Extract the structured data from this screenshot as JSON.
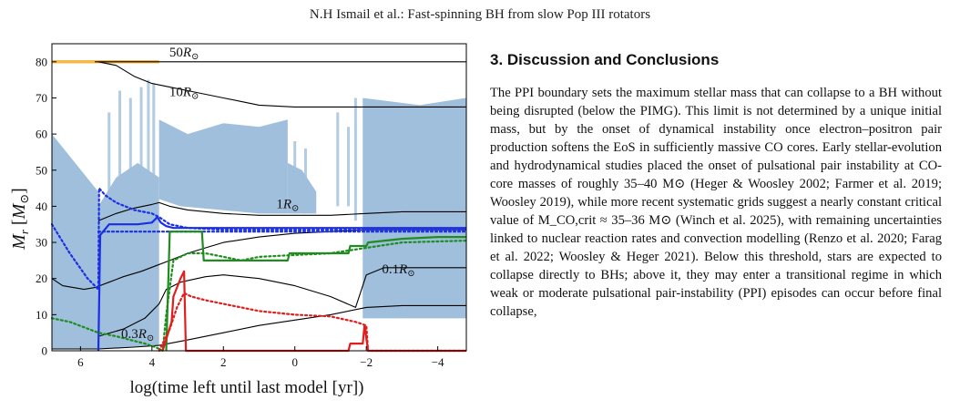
{
  "header": {
    "running_head": "N.H Ismail et al.: Fast-spinning BH from slow Pop III rotators"
  },
  "figure": {
    "chart_data": {
      "type": "line",
      "ylabel": "M_r [M_⊙]",
      "xlabel": "log(time left until last model [yr])",
      "xlim": [
        6.8,
        -4.8
      ],
      "ylim": [
        0,
        85
      ],
      "x_ticks": [
        "6",
        "4",
        "2",
        "0",
        "−2",
        "−4"
      ],
      "x_tick_values": [
        6,
        4,
        2,
        0,
        -2,
        -4
      ],
      "y_ticks": [
        "0",
        "10",
        "20",
        "30",
        "40",
        "50",
        "60",
        "70",
        "80"
      ],
      "y_tick_values": [
        0,
        10,
        20,
        30,
        40,
        50,
        60,
        70,
        80
      ],
      "grid": false,
      "annotations": [
        {
          "text": "50R",
          "x": 3.1,
          "y": 81.5
        },
        {
          "text": "10R",
          "x": 3.1,
          "y": 70.5
        },
        {
          "text": "1R",
          "x": 0.2,
          "y": 39.5
        },
        {
          "text": "0.1R",
          "x": -2.9,
          "y": 21.5
        },
        {
          "text": "0.3R",
          "x": 4.4,
          "y": 3.5
        }
      ],
      "colors": {
        "convection": "#9fbfdc",
        "blue": "#1a2ee6",
        "green": "#1e8c1e",
        "red": "#e01e1e",
        "orange": "#f7b84a",
        "black": "#000000"
      },
      "series": [
        {
          "color": "orange",
          "style": "solid",
          "x": [
            6.8,
            3.8
          ],
          "y": [
            80,
            80
          ]
        },
        {
          "color": "black",
          "style": "solid",
          "x": [
            5.6,
            3.8,
            -4.8
          ],
          "y": [
            80,
            80,
            80
          ]
        },
        {
          "color": "black",
          "style": "solid",
          "x": [
            5.5,
            5.0,
            4.5,
            4.0,
            3.5,
            3.0,
            2.5,
            2.0,
            1.5,
            1.0,
            0.0,
            -1.0,
            -2.0,
            -3.0,
            -4.8
          ],
          "y": [
            80,
            79,
            76,
            74,
            73,
            72,
            71,
            70,
            69,
            68,
            67.5,
            67.5,
            67.5,
            67.5,
            67.5
          ]
        },
        {
          "color": "black",
          "style": "solid",
          "x": [
            5.5,
            5.0,
            4.5,
            4.0,
            3.8,
            3.5,
            3.0,
            2.0,
            1.0,
            0.0,
            -1.0,
            -2.0,
            -3.0,
            -4.8
          ],
          "y": [
            36,
            38,
            39.5,
            40.5,
            41,
            40,
            39,
            38,
            37.5,
            37.5,
            37.5,
            38,
            38.5,
            38.5
          ]
        },
        {
          "color": "black",
          "style": "solid",
          "x": [
            6.8,
            6.5,
            6.2,
            5.9,
            5.6,
            5.2,
            4.8,
            4.3,
            3.9,
            3.5,
            3.0,
            2.5,
            2.0,
            1.0,
            0.0,
            -1.0,
            -2.0,
            -3.0,
            -4.8
          ],
          "y": [
            20,
            18,
            17.5,
            17,
            17.5,
            19,
            20.5,
            22,
            23.5,
            25,
            27,
            28.5,
            30,
            31.5,
            32.5,
            33,
            33.5,
            33.5,
            33.5
          ]
        },
        {
          "color": "black",
          "style": "solid",
          "x": [
            5.5,
            4.8,
            4.2,
            3.8,
            3.6,
            3.2,
            2.5,
            2.0,
            1.0,
            0.0,
            -1.0,
            -1.7,
            -2.0,
            -2.5,
            -3.0,
            -4.8
          ],
          "y": [
            4,
            6,
            9,
            13,
            17,
            19,
            20.5,
            21,
            20,
            18,
            15,
            12,
            21,
            23,
            23,
            23
          ]
        },
        {
          "color": "black",
          "style": "solid",
          "x": [
            6.8,
            5.5,
            4.5,
            3.8,
            3.0,
            2.0,
            1.0,
            0.0,
            -1.0,
            -2.0,
            -3.0,
            -4.8
          ],
          "y": [
            0.5,
            0.5,
            1,
            1.5,
            3,
            5,
            7,
            8.5,
            10,
            12,
            12.5,
            12.5
          ]
        },
        {
          "color": "blue",
          "style": "solid",
          "x": [
            5.5,
            5.45,
            5.2,
            4.8,
            4.4,
            4.0,
            3.85,
            3.75,
            3.6,
            3.4,
            3.0,
            2.0,
            1.0,
            0.0,
            -2.0,
            -4.8
          ],
          "y": [
            0,
            32,
            35,
            35,
            35,
            35.5,
            37,
            35.5,
            34.5,
            34,
            34,
            34,
            34,
            34,
            34,
            34
          ]
        },
        {
          "color": "blue",
          "style": "dotted",
          "x": [
            6.8,
            6.3,
            5.8,
            5.5,
            5.48,
            5.3,
            5.0,
            4.5,
            4.0,
            3.8,
            3.5,
            3.0,
            2.0,
            1.0,
            0.0,
            -2.0,
            -4.8
          ],
          "y": [
            35,
            27,
            20,
            17,
            45,
            43,
            41,
            39,
            38,
            37,
            35,
            34,
            33.5,
            33.5,
            33.5,
            33.5,
            33.5
          ]
        },
        {
          "color": "blue",
          "style": "dotted",
          "x": [
            5.5,
            4.8,
            4.2,
            3.8,
            3.5,
            3.0,
            2.0,
            1.0,
            0.0,
            -2.0,
            -4.8
          ],
          "y": [
            33,
            33,
            33,
            33,
            33,
            33,
            33,
            33,
            33,
            33,
            33
          ]
        },
        {
          "color": "green",
          "style": "solid",
          "x": [
            3.6,
            3.5,
            2.6,
            2.55,
            1.0,
            0.2,
            0.15,
            -1.5,
            -1.55,
            -2.0,
            -2.05,
            -3.0,
            -4.0,
            -4.8
          ],
          "y": [
            0,
            33,
            33,
            25,
            25,
            25,
            27,
            27,
            29,
            29,
            30,
            31,
            31.5,
            31.5
          ]
        },
        {
          "color": "green",
          "style": "dotted",
          "x": [
            6.8,
            6.3,
            5.9,
            5.5,
            5.0,
            4.6,
            4.2,
            3.9,
            3.7,
            3.6,
            3.4,
            3.0,
            2.5,
            2.0,
            1.5,
            1.0,
            0.0,
            -1.0,
            -2.0,
            -3.0,
            -4.8
          ],
          "y": [
            9,
            8,
            6.5,
            5,
            4,
            3,
            2,
            1,
            0,
            10,
            25,
            27,
            27,
            26,
            25,
            26,
            26.5,
            27,
            28.5,
            30,
            30.5
          ]
        },
        {
          "color": "red",
          "style": "solid",
          "x": [
            3.7,
            3.45,
            3.4,
            3.2,
            3.1,
            3.05,
            3.0,
            2.0,
            0.0,
            -1.5,
            -1.55,
            -1.9,
            -1.95,
            -2.05,
            -4.8
          ],
          "y": [
            0,
            8,
            15,
            20,
            22,
            0,
            0,
            0,
            0,
            0,
            2,
            2,
            7,
            0,
            0
          ]
        },
        {
          "color": "red",
          "style": "dotted",
          "x": [
            3.8,
            3.5,
            3.3,
            3.1,
            2.9,
            2.5,
            2.0,
            1.0,
            0.0,
            -1.0,
            -1.7,
            -2.0,
            -2.05,
            -4.8
          ],
          "y": [
            0,
            6,
            12,
            16,
            15,
            14,
            13,
            11,
            10,
            9.5,
            8,
            7,
            0,
            0
          ]
        }
      ]
    }
  },
  "section": {
    "title": "3. Discussion and Conclusions",
    "body": "The PPI boundary sets the maximum stellar mass that can collapse to a BH without being disrupted (below the PIMG). This limit is not determined by a unique initial mass, but by the onset of dynamical instability once electron–positron pair production softens the EoS in sufficiently massive CO cores. Early stellar-evolution and hydrodynamical studies placed the onset of pulsational pair instability at CO-core masses of roughly 35–40 M⊙ (Heger & Woosley 2002; Farmer et al. 2019; Woosley 2019), while more recent systematic grids suggest a nearly constant critical value of M_CO,crit ≈ 35–36 M⊙ (Winch et al. 2025), with remaining uncertainties linked to nuclear reaction rates and convection modelling (Renzo et al. 2020; Farag et al. 2022; Woosley & Heger 2021). Below this threshold, stars are expected to collapse directly to BHs; above it, they may enter a transitional regime in which weak or moderate pulsational pair-instability (PPI) episodes can occur before final collapse,"
  }
}
